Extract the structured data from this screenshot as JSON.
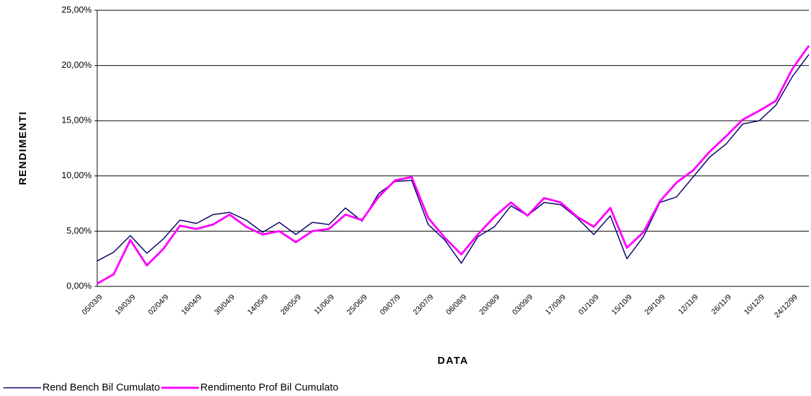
{
  "chart_data": {
    "type": "line",
    "y_label": "RENDIMENTI",
    "x_label": "DATA",
    "categories": [
      "05/03/9",
      null,
      "19/03/9",
      null,
      "02/04/9",
      null,
      "16/04/9",
      null,
      "30/04/9",
      null,
      "14/05/9",
      null,
      "28/05/9",
      null,
      "11/06/9",
      null,
      "25/06/9",
      null,
      "09/07/9",
      null,
      "23/07/9",
      null,
      "06/08/9",
      null,
      "20/08/9",
      null,
      "03/09/9",
      null,
      "17/09/9",
      null,
      "01/10/9",
      null,
      "15/10/9",
      null,
      "29/10/9",
      null,
      "12/11/9",
      null,
      "26/11/9",
      null,
      "10/12/9",
      null,
      "24/12/99",
      null
    ],
    "series": [
      {
        "name": "Rend Bench Bil Cumulato",
        "color": "#000066",
        "values": [
          2.3,
          3.1,
          4.6,
          3.0,
          4.3,
          6.0,
          5.7,
          6.5,
          6.7,
          6.0,
          4.9,
          5.8,
          4.7,
          5.8,
          5.6,
          7.1,
          5.9,
          8.4,
          9.5,
          9.6,
          5.6,
          4.2,
          2.1,
          4.5,
          5.4,
          7.3,
          6.4,
          7.6,
          7.4,
          6.2,
          4.7,
          6.4,
          2.5,
          4.5,
          7.6,
          8.1,
          9.9,
          11.7,
          12.9,
          14.7,
          15.0,
          16.4,
          19.0,
          21.0
        ]
      },
      {
        "name": "Rendimento Prof Bil Cumulato",
        "color": "#ff00ff",
        "values": [
          0.25,
          1.1,
          4.2,
          1.9,
          3.4,
          5.5,
          5.2,
          5.6,
          6.5,
          5.4,
          4.7,
          5.0,
          4.0,
          5.0,
          5.2,
          6.5,
          6.0,
          8.1,
          9.6,
          9.9,
          6.2,
          4.4,
          2.9,
          4.7,
          6.3,
          7.6,
          6.4,
          8.0,
          7.6,
          6.3,
          5.4,
          7.1,
          3.5,
          4.9,
          7.7,
          9.4,
          10.5,
          12.2,
          13.6,
          15.1,
          15.9,
          16.8,
          19.7,
          21.8
        ]
      }
    ],
    "ylim": [
      0,
      25
    ],
    "yticks": [
      {
        "value": 0,
        "label": "0,00%"
      },
      {
        "value": 5,
        "label": "5,00%"
      },
      {
        "value": 10,
        "label": "10,00%"
      },
      {
        "value": 15,
        "label": "15,00%"
      },
      {
        "value": 20,
        "label": "20,00%"
      },
      {
        "value": 25,
        "label": "25,00%"
      }
    ],
    "grid": true,
    "legend": "bottom-left"
  }
}
